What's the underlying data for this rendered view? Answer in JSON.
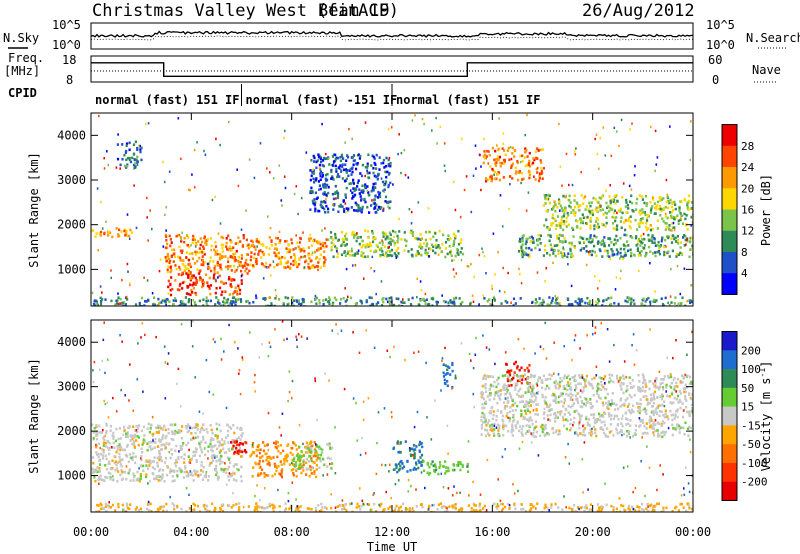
{
  "figure": {
    "title": "Christmas Valley West (fitACF)",
    "beam": "Beam 19",
    "date": "26/Aug/2012"
  },
  "summary_panel": {
    "nsky_label": "N.Sky",
    "nsearch_label": "N.Search",
    "freq_label_1": "Freq.",
    "freq_label_2": "[MHz]",
    "nave_label": "Nave",
    "cpid_label": "CPID",
    "noise_ticks": [
      "10^5",
      "10^0"
    ],
    "freq_ticks": [
      "18",
      "8"
    ],
    "nave_ticks": [
      "60",
      "0"
    ],
    "cpid_segments": [
      {
        "label": "normal (fast) 151 IF",
        "start": 0,
        "end": 6
      },
      {
        "label": "normal (fast) -151 IF",
        "start": 6,
        "end": 12
      },
      {
        "label": "normal (fast) 151 IF",
        "start": 12,
        "end": 24
      }
    ]
  },
  "x_axis": {
    "title": "Time UT",
    "ticks": [
      "00:00",
      "04:00",
      "08:00",
      "12:00",
      "16:00",
      "20:00",
      "00:00"
    ]
  },
  "power_panel": {
    "ylabel": "Slant Range [km]",
    "yticks": [
      "1000",
      "2000",
      "3000",
      "4000"
    ],
    "colorbar_label": "Power [dB]",
    "colorbar_ticks": [
      "4",
      "8",
      "12",
      "16",
      "20",
      "24",
      "28"
    ],
    "colors": [
      "#0000ff",
      "#2050c8",
      "#2e8b57",
      "#7cc34a",
      "#ffd700",
      "#ff9900",
      "#ff4500",
      "#ee0000"
    ]
  },
  "velocity_panel": {
    "ylabel": "Slant Range [km]",
    "yticks": [
      "1000",
      "2000",
      "3000",
      "4000"
    ],
    "colorbar_label": "Velocity [m s",
    "colorbar_label_sup": "-1",
    "colorbar_label_end": "]",
    "colorbar_ticks": [
      "200",
      "100",
      "50",
      "15",
      "-15",
      "-50",
      "-100",
      "-200"
    ],
    "colors": [
      "#1a1acc",
      "#1e6ed2",
      "#2e8b57",
      "#66cc33",
      "#c8c8c8",
      "#ffa500",
      "#ff7000",
      "#ff3300",
      "#e60000"
    ]
  },
  "chart_data": [
    {
      "type": "heatmap",
      "title": "Christmas Valley West (fitACF) Beam 19 26/Aug/2012",
      "xlabel": "Time UT",
      "ylabel": "Slant Range [km]",
      "xlim": [
        0,
        24
      ],
      "ylim": [
        180,
        4500
      ],
      "colorbar": "Power [dB]",
      "clim": [
        0,
        30
      ],
      "echo_regions": [
        {
          "t0": 0.0,
          "t1": 1.6,
          "r0": 1750,
          "r1": 1950,
          "value": 20
        },
        {
          "t0": 1.0,
          "t1": 2.0,
          "r0": 3300,
          "r1": 3900,
          "value": 7
        },
        {
          "t0": 2.9,
          "t1": 6.3,
          "r0": 900,
          "r1": 1800,
          "value": 22
        },
        {
          "t0": 3.0,
          "t1": 6.0,
          "r0": 450,
          "r1": 900,
          "value": 26
        },
        {
          "t0": 6.3,
          "t1": 9.4,
          "r0": 1050,
          "r1": 1750,
          "value": 21
        },
        {
          "t0": 8.7,
          "t1": 11.9,
          "r0": 2300,
          "r1": 3600,
          "value": 6
        },
        {
          "t0": 9.5,
          "t1": 14.8,
          "r0": 1300,
          "r1": 1900,
          "value": 13
        },
        {
          "t0": 15.6,
          "t1": 18.0,
          "r0": 3000,
          "r1": 3750,
          "value": 22
        },
        {
          "t0": 18.0,
          "t1": 24.0,
          "r0": 1900,
          "r1": 2700,
          "value": 14
        },
        {
          "t0": 17.0,
          "t1": 24.0,
          "r0": 1300,
          "r1": 1800,
          "value": 11
        },
        {
          "t0": 0.0,
          "t1": 24.0,
          "r0": 180,
          "r1": 400,
          "value": 9
        }
      ]
    },
    {
      "type": "heatmap",
      "title": "",
      "xlabel": "Time UT",
      "ylabel": "Slant Range [km]",
      "xlim": [
        0,
        24
      ],
      "ylim": [
        180,
        4500
      ],
      "colorbar": "Velocity [m s-1]",
      "clim": [
        -250,
        250
      ],
      "echo_regions": [
        {
          "t0": 0.0,
          "t1": 6.0,
          "r0": 900,
          "r1": 2200,
          "value": 0
        },
        {
          "t0": 5.5,
          "t1": 6.3,
          "r0": 1500,
          "r1": 1800,
          "value": -200
        },
        {
          "t0": 6.3,
          "t1": 9.0,
          "r0": 1000,
          "r1": 1800,
          "value": -70
        },
        {
          "t0": 8.0,
          "t1": 9.6,
          "r0": 1150,
          "r1": 1750,
          "value": 40
        },
        {
          "t0": 12.0,
          "t1": 13.2,
          "r0": 1100,
          "r1": 1800,
          "value": 150
        },
        {
          "t0": 13.2,
          "t1": 15.0,
          "r0": 1050,
          "r1": 1350,
          "value": 60
        },
        {
          "t0": 14.0,
          "t1": 14.5,
          "r0": 3000,
          "r1": 3600,
          "value": 150
        },
        {
          "t0": 16.5,
          "t1": 17.5,
          "r0": 3000,
          "r1": 3600,
          "value": -200
        },
        {
          "t0": 15.5,
          "t1": 24.0,
          "r0": 1900,
          "r1": 3300,
          "value": 0
        },
        {
          "t0": 0.0,
          "t1": 24.0,
          "r0": 180,
          "r1": 400,
          "value": -40
        }
      ]
    },
    {
      "type": "line",
      "title": "",
      "ylabel": "Freq. [MHz]",
      "ylim": [
        8,
        18
      ],
      "x": [
        0,
        2.9,
        2.9,
        15.0,
        15.0,
        24.0
      ],
      "y": [
        15.4,
        15.4,
        10.2,
        10.2,
        15.4,
        15.4
      ]
    }
  ]
}
